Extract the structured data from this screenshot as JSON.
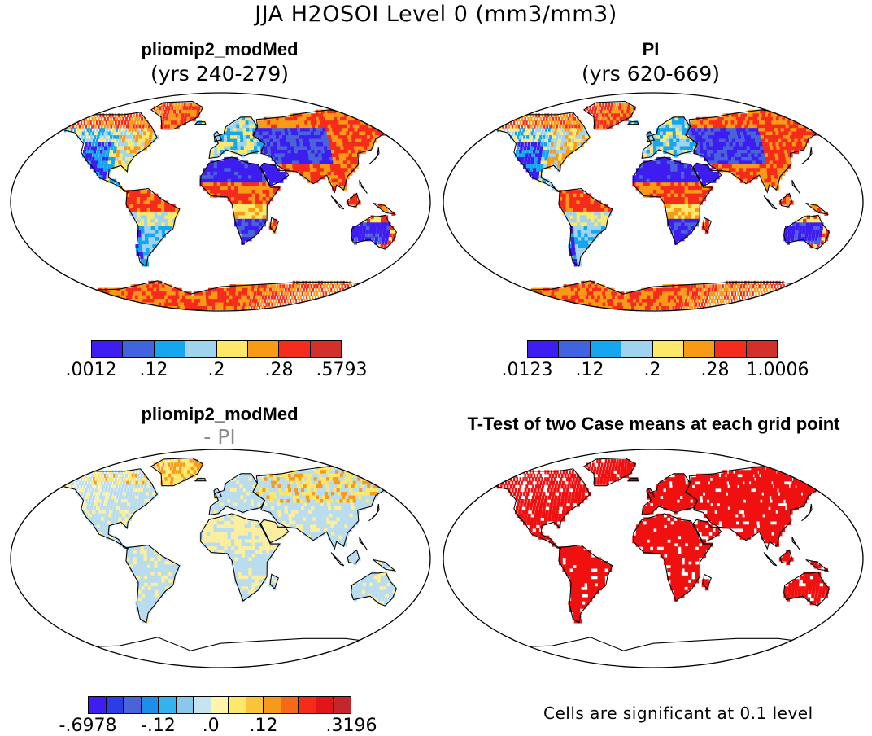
{
  "title": "JJA H2OSOI Level 0 (mm3/mm3)",
  "panels": [
    {
      "id": "p1",
      "title": "pliomip2_modMed",
      "subtitle": "(yrs 240-279)",
      "colorbar": {
        "colors": [
          "#3d1df0",
          "#4163de",
          "#14a6ee",
          "#9fd3ee",
          "#fde86a",
          "#f99a16",
          "#f52b1b",
          "#d4302b"
        ],
        "labels": [
          ".0012",
          ".12",
          ".2",
          ".28",
          ".5793"
        ]
      }
    },
    {
      "id": "p2",
      "title": "PI",
      "subtitle": "(yrs 620-669)",
      "colorbar": {
        "colors": [
          "#3d1df0",
          "#4163de",
          "#14a6ee",
          "#9fd3ee",
          "#fde86a",
          "#f99a16",
          "#f52b1b",
          "#d4302b"
        ],
        "labels": [
          ".0123",
          ".12",
          ".2",
          ".28",
          "1.0006"
        ]
      }
    },
    {
      "id": "p3",
      "title": "pliomip2_modMed",
      "subtitle": "- PI",
      "colorbar": {
        "colors": [
          "#3d1df0",
          "#2a3ee8",
          "#4a63d9",
          "#1f8ee8",
          "#33b2ee",
          "#88c8ea",
          "#c6e3f0",
          "#fff5a8",
          "#fde86a",
          "#f8c43a",
          "#f59a1a",
          "#f56a1a",
          "#f52b1b",
          "#e0161b",
          "#c4262b"
        ],
        "labels": [
          "-.6978",
          "-.12",
          ".0",
          ".12",
          ".3196"
        ]
      }
    },
    {
      "id": "p4",
      "title": "T-Test of two Case means at each grid point",
      "note": "Cells are significant at 0.1 level"
    }
  ],
  "map_colors": {
    "dry": "#3d1df0",
    "mid_dry": "#4a63d9",
    "mid": "#14a6ee",
    "light": "#9fd3ee",
    "yellow": "#fde86a",
    "orange": "#f99a16",
    "red": "#f52b1b",
    "sig": "#f01010",
    "diff_light": "#b9dcef",
    "diff_yellow": "#fbee9e"
  }
}
